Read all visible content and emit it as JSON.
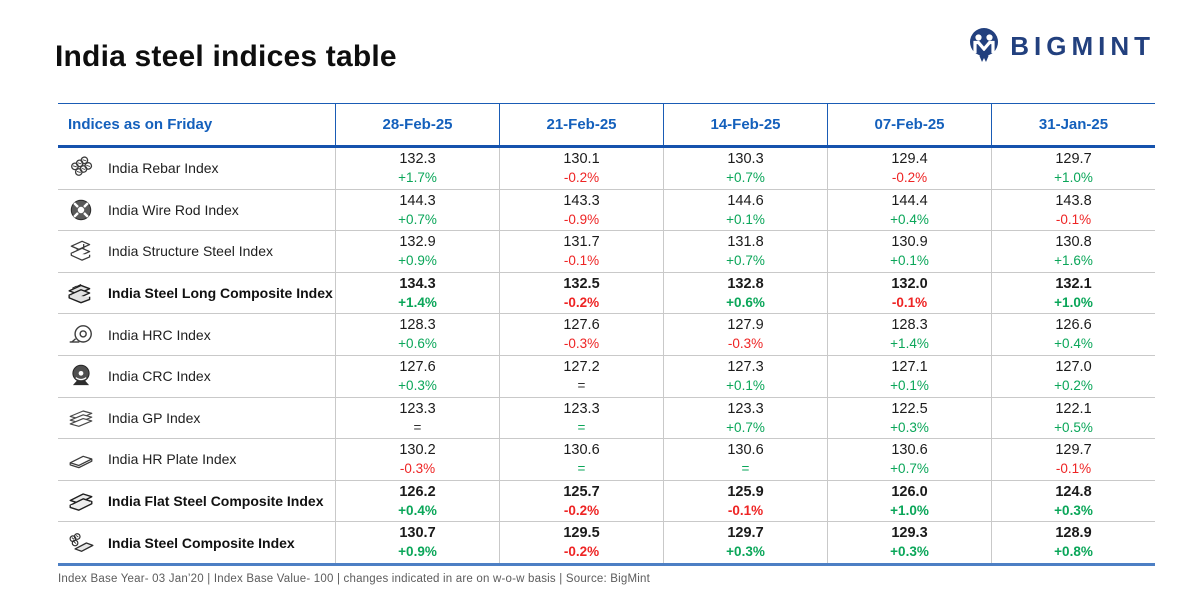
{
  "page": {
    "title": "India steel indices table",
    "brand": "BIGMINT",
    "footer": "Index Base Year- 03 Jan’20 | Index Base Value- 100 | changes indicated in are on w-o-w basis | Source: BigMint"
  },
  "colors": {
    "header_blue": "#1460bc",
    "brand_navy": "#22407e",
    "green": "#0aa659",
    "red": "#ee2424",
    "dark": "#2e2e2e",
    "table_top_line": "#1a5cb5",
    "table_header_line": "#1552ad",
    "table_bottom_line": "#4d7fc4"
  },
  "chart_data": {
    "type": "table",
    "title": "India steel indices table",
    "columns": [
      "Indices as on Friday",
      "28-Feb-25",
      "21-Feb-25",
      "14-Feb-25",
      "07-Feb-25",
      "31-Jan-25"
    ],
    "rows": [
      {
        "label": "India Rebar Index",
        "icon": "rebar-icon",
        "bold": false,
        "cells": [
          {
            "value": "132.3",
            "change": "+1.7%",
            "change_color": "green"
          },
          {
            "value": "130.1",
            "change": "-0.2%",
            "change_color": "red"
          },
          {
            "value": "130.3",
            "change": "+0.7%",
            "change_color": "green"
          },
          {
            "value": "129.4",
            "change": "-0.2%",
            "change_color": "red"
          },
          {
            "value": "129.7",
            "change": "+1.0%",
            "change_color": "green"
          }
        ]
      },
      {
        "label": "India Wire Rod Index",
        "icon": "wire-rod-coil-icon",
        "bold": false,
        "cells": [
          {
            "value": "144.3",
            "change": "+0.7%",
            "change_color": "green"
          },
          {
            "value": "143.3",
            "change": "-0.9%",
            "change_color": "red"
          },
          {
            "value": "144.6",
            "change": "+0.1%",
            "change_color": "green"
          },
          {
            "value": "144.4",
            "change": "+0.4%",
            "change_color": "green"
          },
          {
            "value": "143.8",
            "change": "-0.1%",
            "change_color": "red"
          }
        ]
      },
      {
        "label": "India Structure Steel Index",
        "icon": "structure-steel-icon",
        "bold": false,
        "cells": [
          {
            "value": "132.9",
            "change": "+0.9%",
            "change_color": "green"
          },
          {
            "value": "131.7",
            "change": "-0.1%",
            "change_color": "red"
          },
          {
            "value": "131.8",
            "change": "+0.7%",
            "change_color": "green"
          },
          {
            "value": "130.9",
            "change": "+0.1%",
            "change_color": "green"
          },
          {
            "value": "130.8",
            "change": "+1.6%",
            "change_color": "green"
          }
        ]
      },
      {
        "label": "India Steel Long Composite Index",
        "icon": "steel-long-composite-icon",
        "bold": true,
        "cells": [
          {
            "value": "134.3",
            "change": "+1.4%",
            "change_color": "green"
          },
          {
            "value": "132.5",
            "change": "-0.2%",
            "change_color": "red"
          },
          {
            "value": "132.8",
            "change": "+0.6%",
            "change_color": "green"
          },
          {
            "value": "132.0",
            "change": "-0.1%",
            "change_color": "red"
          },
          {
            "value": "132.1",
            "change": "+1.0%",
            "change_color": "green"
          }
        ]
      },
      {
        "label": "India HRC Index",
        "icon": "hrc-coil-icon",
        "bold": false,
        "cells": [
          {
            "value": "128.3",
            "change": "+0.6%",
            "change_color": "green"
          },
          {
            "value": "127.6",
            "change": "-0.3%",
            "change_color": "red"
          },
          {
            "value": "127.9",
            "change": "-0.3%",
            "change_color": "red"
          },
          {
            "value": "128.3",
            "change": "+1.4%",
            "change_color": "green"
          },
          {
            "value": "126.6",
            "change": "+0.4%",
            "change_color": "green"
          }
        ]
      },
      {
        "label": "India CRC Index",
        "icon": "crc-coil-icon",
        "bold": false,
        "cells": [
          {
            "value": "127.6",
            "change": "+0.3%",
            "change_color": "green"
          },
          {
            "value": "127.2",
            "change": "=",
            "change_color": "dark"
          },
          {
            "value": "127.3",
            "change": "+0.1%",
            "change_color": "green"
          },
          {
            "value": "127.1",
            "change": "+0.1%",
            "change_color": "green"
          },
          {
            "value": "127.0",
            "change": "+0.2%",
            "change_color": "green"
          }
        ]
      },
      {
        "label": "India GP Index",
        "icon": "gp-sheets-icon",
        "bold": false,
        "cells": [
          {
            "value": "123.3",
            "change": "=",
            "change_color": "dark"
          },
          {
            "value": "123.3",
            "change": "=",
            "change_color": "green"
          },
          {
            "value": "123.3",
            "change": "+0.7%",
            "change_color": "green"
          },
          {
            "value": "122.5",
            "change": "+0.3%",
            "change_color": "green"
          },
          {
            "value": "122.1",
            "change": "+0.5%",
            "change_color": "green"
          }
        ]
      },
      {
        "label": "India HR Plate Index",
        "icon": "hr-plate-icon",
        "bold": false,
        "cells": [
          {
            "value": "130.2",
            "change": "-0.3%",
            "change_color": "red"
          },
          {
            "value": "130.6",
            "change": "=",
            "change_color": "green"
          },
          {
            "value": "130.6",
            "change": "=",
            "change_color": "green"
          },
          {
            "value": "130.6",
            "change": "+0.7%",
            "change_color": "green"
          },
          {
            "value": "129.7",
            "change": "-0.1%",
            "change_color": "red"
          }
        ]
      },
      {
        "label": "India Flat Steel Composite Index",
        "icon": "flat-steel-composite-icon",
        "bold": true,
        "cells": [
          {
            "value": "126.2",
            "change": "+0.4%",
            "change_color": "green"
          },
          {
            "value": "125.7",
            "change": "-0.2%",
            "change_color": "red"
          },
          {
            "value": "125.9",
            "change": "-0.1%",
            "change_color": "red"
          },
          {
            "value": "126.0",
            "change": "+1.0%",
            "change_color": "green"
          },
          {
            "value": "124.8",
            "change": "+0.3%",
            "change_color": "green"
          }
        ]
      },
      {
        "label": "India Steel Composite Index",
        "icon": "steel-composite-icon",
        "bold": true,
        "cells": [
          {
            "value": "130.7",
            "change": "+0.9%",
            "change_color": "green"
          },
          {
            "value": "129.5",
            "change": "-0.2%",
            "change_color": "red"
          },
          {
            "value": "129.7",
            "change": "+0.3%",
            "change_color": "green"
          },
          {
            "value": "129.3",
            "change": "+0.3%",
            "change_color": "green"
          },
          {
            "value": "128.9",
            "change": "+0.8%",
            "change_color": "green"
          }
        ]
      }
    ]
  }
}
